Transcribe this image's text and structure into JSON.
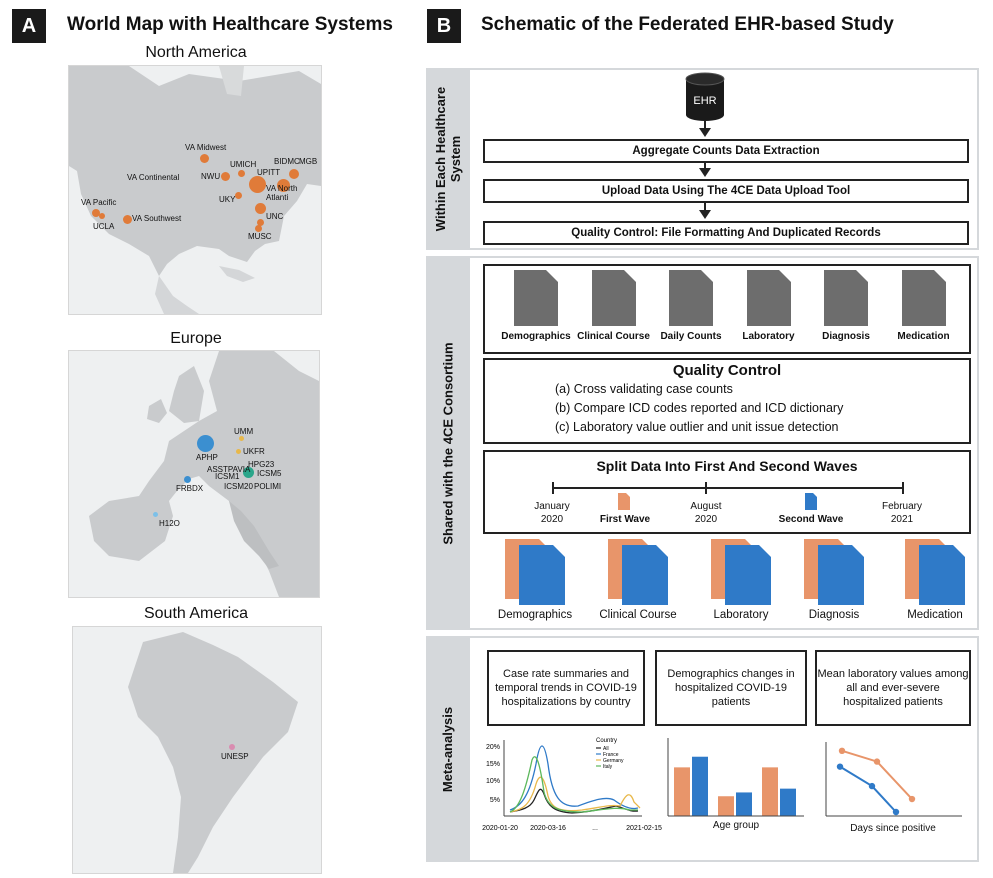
{
  "panel_a": {
    "letter": "A",
    "title": "World Map with Healthcare Systems",
    "regions": [
      {
        "name": "North America"
      },
      {
        "name": "Europe"
      },
      {
        "name": "South America"
      }
    ],
    "sites_na": [
      "VA Midwest",
      "UMICH",
      "BIDMC",
      "MGB",
      "VA Continental",
      "NWU",
      "UPITT",
      "VA North Atlanti",
      "UKY",
      "VA Pacific",
      "VA Southwest",
      "UNC",
      "UCLA",
      "MUSC"
    ],
    "sites_eu": [
      "UMM",
      "APHP",
      "UKFR",
      "HPG23",
      "ASSTPAVIA",
      "ICSM5",
      "ICSM1",
      "FRBDX",
      "ICSM20",
      "POLIMI",
      "H12O"
    ],
    "sites_sa": [
      "UNESP"
    ],
    "colors": {
      "na": "#e07b39",
      "eu_large": "#3b8fd0",
      "eu_gold": "#e8b84a",
      "eu_green": "#2aa68a",
      "eu_light": "#7cc0e8",
      "sa": "#d98cb0"
    }
  },
  "panel_b": {
    "letter": "B",
    "title": "Schematic of the Federated EHR-based Study",
    "section1": {
      "label": "Within Each Healthcare System",
      "label_line1": "Within Each Healthcare",
      "label_line2": "System",
      "ehr": "EHR",
      "steps": [
        "Aggregate Counts Data Extraction",
        "Upload Data Using The 4CE Data Upload Tool",
        "Quality Control: File Formatting And Duplicated Records"
      ]
    },
    "section2": {
      "label": "Shared with the 4CE Consortium",
      "docs": [
        "Demographics",
        "Clinical Course",
        "Daily Counts",
        "Laboratory",
        "Diagnosis",
        "Medication"
      ],
      "qc_title": "Quality Control",
      "qc_items": [
        "(a) Cross validating case counts",
        "(b) Compare ICD codes reported and ICD dictionary",
        "(c) Laboratory value outlier and unit issue detection"
      ],
      "split_title": "Split Data Into First And Second Waves",
      "timeline": [
        {
          "line1": "January",
          "line2": "2020"
        },
        {
          "line1": "August",
          "line2": "2020"
        },
        {
          "line1": "February",
          "line2": "2021"
        }
      ],
      "first_wave": "First Wave",
      "second_wave": "Second Wave",
      "split_docs": [
        "Demographics",
        "Clinical Course",
        "Laboratory",
        "Diagnosis",
        "Medication"
      ],
      "colors": {
        "first": "#e8956a",
        "second": "#2f7ac8",
        "doc": "#6d6d6d"
      }
    },
    "section3": {
      "label": "Meta-analysis",
      "boxes": [
        "Case rate summaries and temporal trends in COVID-19 hospitalizations by country",
        "Demographics changes in hospitalized COVID-19 patients",
        "Mean laboratory values among all and ever-severe hospitalized patients"
      ],
      "line_chart": {
        "yticks": [
          "20%",
          "15%",
          "10%",
          "5%"
        ],
        "xticks": [
          "2020-01-20",
          "2020-03-16",
          "...",
          "2021-02-15"
        ],
        "legend_title": "Country",
        "legend": [
          "All",
          "France",
          "Germany",
          "Italy"
        ],
        "legend_colors": [
          "#222222",
          "#2f7ac8",
          "#e8b84a",
          "#5cb85c"
        ]
      },
      "bar_chart": {
        "xlabel": "Age group",
        "groups": [
          {
            "first": 0.64,
            "second": 0.78
          },
          {
            "first": 0.26,
            "second": 0.31
          },
          {
            "first": 0.64,
            "second": 0.36
          }
        ]
      },
      "trend_chart": {
        "xlabel": "Days since positive",
        "series": [
          {
            "name": "first",
            "values": [
              0.85,
              0.7,
              0.18
            ]
          },
          {
            "name": "second",
            "values": [
              0.63,
              0.36,
              0.0
            ]
          }
        ]
      }
    }
  }
}
